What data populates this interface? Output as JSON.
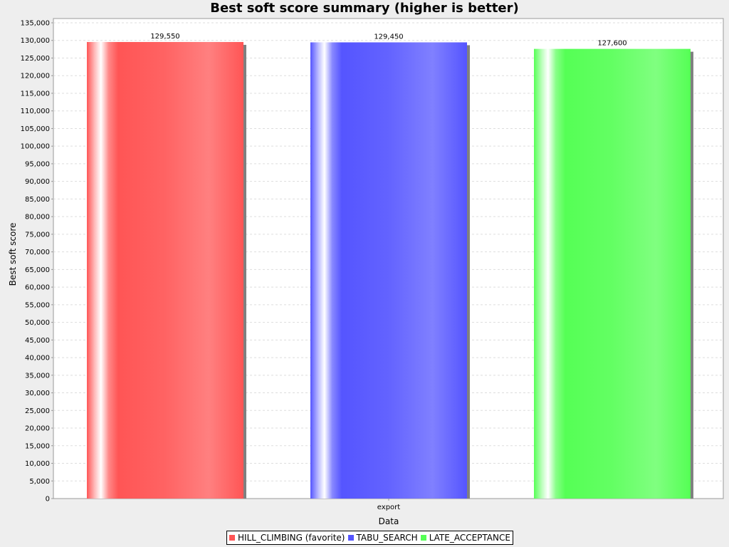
{
  "chart_data": {
    "type": "bar",
    "title": "Best soft score summary (higher is better)",
    "xlabel": "Data",
    "ylabel": "Best soft score",
    "categories": [
      "export"
    ],
    "series": [
      {
        "name": "HILL_CLIMBING (favorite)",
        "values": [
          129550
        ],
        "label": "129,550",
        "color": "#ff5555"
      },
      {
        "name": "TABU_SEARCH",
        "values": [
          129450
        ],
        "label": "129,450",
        "color": "#5555ff"
      },
      {
        "name": "LATE_ACCEPTANCE",
        "values": [
          127600
        ],
        "label": "127,600",
        "color": "#55ff55"
      }
    ],
    "ylim": [
      0,
      136000
    ],
    "ytick_step": 5000,
    "grid": true,
    "legend_position": "bottom-center"
  }
}
